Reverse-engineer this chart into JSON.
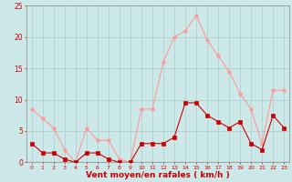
{
  "x": [
    0,
    1,
    2,
    3,
    4,
    5,
    6,
    7,
    8,
    9,
    10,
    11,
    12,
    13,
    14,
    15,
    16,
    17,
    18,
    19,
    20,
    21,
    22,
    23
  ],
  "avg_wind": [
    3,
    1.5,
    1.5,
    0.5,
    0,
    1.5,
    1.5,
    0.5,
    0,
    0,
    3,
    3,
    3,
    4,
    9.5,
    9.5,
    7.5,
    6.5,
    5.5,
    6.5,
    3,
    2,
    7.5,
    5.5
  ],
  "gust_wind": [
    8.5,
    7,
    5.5,
    2,
    0,
    5.5,
    3.5,
    3.5,
    0.5,
    0,
    8.5,
    8.5,
    16,
    20,
    21,
    23.5,
    19.5,
    17,
    14.5,
    11,
    8.5,
    3,
    11.5,
    11.5
  ],
  "avg_color": "#cc0000",
  "gust_color": "#ff9999",
  "bg_color": "#cce8e8",
  "grid_color": "#aacccc",
  "xlabel": "Vent moyen/en rafales ( km/h )",
  "xlabel_color": "#cc0000",
  "tick_color": "#cc0000",
  "spine_color": "#888888",
  "ylim": [
    0,
    25
  ],
  "yticks": [
    0,
    5,
    10,
    15,
    20,
    25
  ],
  "xlim": [
    -0.5,
    23.5
  ],
  "marker_size": 2.5,
  "linewidth": 0.8
}
